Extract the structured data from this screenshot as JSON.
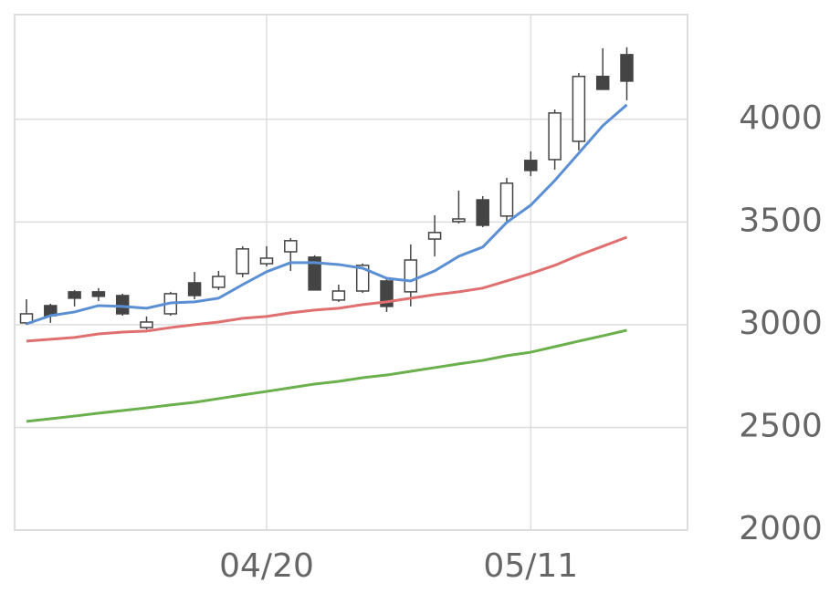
{
  "chart_data": {
    "type": "candlestick",
    "categories": [
      null,
      null,
      null,
      null,
      null,
      null,
      null,
      null,
      null,
      null,
      "04/20",
      null,
      null,
      null,
      null,
      null,
      null,
      null,
      null,
      null,
      null,
      "05/11",
      null,
      null,
      null,
      null
    ],
    "open": [
      3009,
      3093,
      3160,
      3160,
      3142,
      2986,
      3053,
      3204,
      3182,
      3249,
      3297,
      3355,
      3329,
      3120,
      3164,
      3213,
      3160,
      3417,
      3502,
      3608,
      3529,
      3800,
      3804,
      3893,
      4209,
      4315
    ],
    "high": [
      3124,
      3102,
      3169,
      3178,
      3151,
      3040,
      3160,
      3257,
      3262,
      3382,
      3382,
      3422,
      3338,
      3195,
      3298,
      3222,
      3391,
      3533,
      3653,
      3626,
      3715,
      3844,
      4048,
      4226,
      4346,
      4351
    ],
    "low": [
      3000,
      3009,
      3089,
      3115,
      3044,
      2977,
      3044,
      3124,
      3169,
      3231,
      3284,
      3262,
      3169,
      3111,
      3155,
      3062,
      3089,
      3333,
      3493,
      3475,
      3502,
      3724,
      3755,
      3849,
      4146,
      4093
    ],
    "close": [
      3053,
      3044,
      3129,
      3138,
      3053,
      3013,
      3151,
      3142,
      3235,
      3369,
      3324,
      3409,
      3169,
      3164,
      3289,
      3089,
      3315,
      3449,
      3515,
      3484,
      3689,
      3751,
      4031,
      4209,
      4146,
      4186
    ],
    "up_color": "#ffffff",
    "down_color": "#444444",
    "lines": [
      {
        "color": "#5b8fd4",
        "values": [
          3004,
          3044,
          3062,
          3093,
          3089,
          3080,
          3106,
          3111,
          3129,
          3195,
          3258,
          3302,
          3302,
          3293,
          3275,
          3226,
          3213,
          3262,
          3333,
          3378,
          3498,
          3582,
          3702,
          3835,
          3969,
          4071
        ]
      },
      {
        "color": "#e07070",
        "values": [
          2920,
          2929,
          2938,
          2955,
          2964,
          2969,
          2986,
          3000,
          3013,
          3031,
          3040,
          3058,
          3071,
          3080,
          3098,
          3111,
          3129,
          3146,
          3160,
          3178,
          3213,
          3249,
          3289,
          3338,
          3382,
          3426
        ]
      },
      {
        "color": "#6ab04c",
        "values": [
          2529,
          2542,
          2555,
          2569,
          2582,
          2595,
          2609,
          2622,
          2640,
          2658,
          2675,
          2693,
          2711,
          2724,
          2742,
          2755,
          2773,
          2791,
          2809,
          2826,
          2849,
          2866,
          2893,
          2920,
          2946,
          2973
        ]
      }
    ],
    "ylim": [
      2000,
      4510
    ],
    "yticks": [
      2000,
      2500,
      3000,
      3500,
      4000
    ],
    "grid": true
  }
}
